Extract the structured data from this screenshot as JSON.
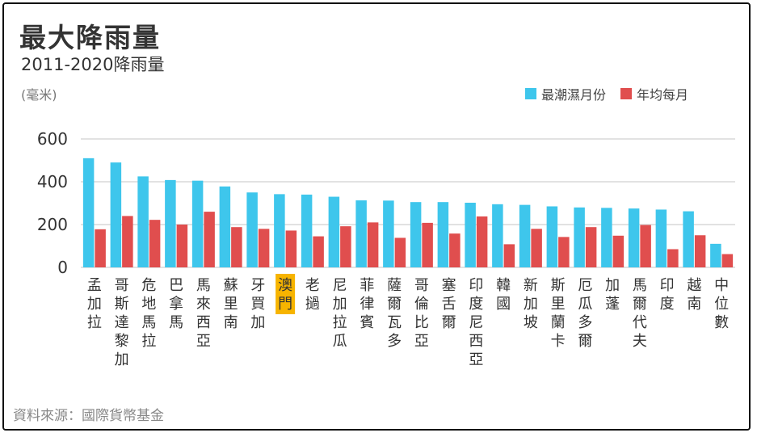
{
  "title": "最大降雨量",
  "subtitle": "2011-2020降雨量",
  "unit": "(毫米)",
  "source": "資料來源：國際貨幣基金",
  "colors": {
    "series1": "#3ec6ec",
    "series2": "#e04e4e",
    "highlight": "#f7b400",
    "grid": "#d9d9d9"
  },
  "chart_data": {
    "type": "bar",
    "categories": [
      "孟加拉",
      "哥斯達黎加",
      "危地馬拉",
      "巴拿馬",
      "馬來西亞",
      "蘇里南",
      "牙買加",
      "澳門",
      "老撾",
      "尼加拉瓜",
      "菲律賓",
      "薩爾瓦多",
      "哥倫比亞",
      "塞舌爾",
      "印度尼西亞",
      "韓國",
      "新加坡",
      "斯里蘭卡",
      "厄瓜多爾",
      "加蓬",
      "馬爾代夫",
      "印度",
      "越南",
      "中位數"
    ],
    "highlight_category": "澳門",
    "series": [
      {
        "name": "最潮濕月份",
        "values": [
          510,
          490,
          425,
          408,
          405,
          378,
          350,
          342,
          340,
          330,
          313,
          312,
          305,
          305,
          302,
          295,
          292,
          285,
          280,
          278,
          275,
          270,
          262,
          110
        ]
      },
      {
        "name": "年均每月",
        "values": [
          178,
          240,
          222,
          200,
          260,
          188,
          180,
          172,
          145,
          192,
          210,
          138,
          208,
          158,
          238,
          108,
          180,
          142,
          188,
          148,
          198,
          85,
          150,
          62
        ]
      }
    ],
    "yticks": [
      0,
      200,
      400,
      600
    ],
    "ylim": [
      0,
      600
    ],
    "grid": true,
    "legend_position": "top-right"
  }
}
